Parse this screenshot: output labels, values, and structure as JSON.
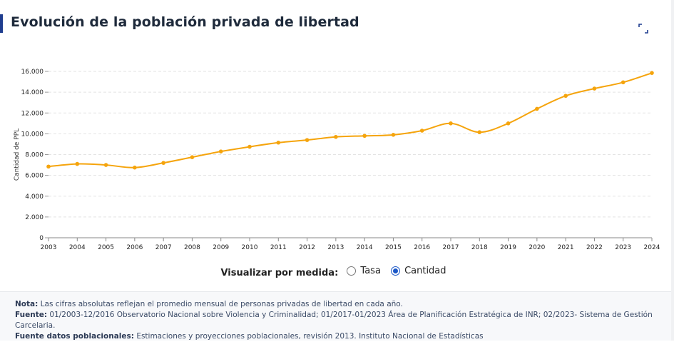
{
  "header": {
    "title": "Evolución de la población privada de libertad"
  },
  "chart_data": {
    "type": "line",
    "title": "Evolución de la población privada de libertad",
    "xlabel": "",
    "ylabel": "Cantidad de PPL",
    "ylim": [
      0,
      16000
    ],
    "yticks": [
      "0",
      "2.000",
      "4.000",
      "6.000",
      "8.000",
      "10.000",
      "12.000",
      "14.000",
      "16.000"
    ],
    "ytick_values": [
      0,
      2000,
      4000,
      6000,
      8000,
      10000,
      12000,
      14000,
      16000
    ],
    "categories": [
      "2003",
      "2004",
      "2005",
      "2006",
      "2007",
      "2008",
      "2009",
      "2010",
      "2011",
      "2012",
      "2013",
      "2014",
      "2015",
      "2016",
      "2017",
      "2018",
      "2019",
      "2020",
      "2021",
      "2022",
      "2023",
      "2024"
    ],
    "series": [
      {
        "name": "Cantidad",
        "color": "#f5a40c",
        "values": [
          6850,
          7100,
          7000,
          6750,
          7200,
          7750,
          8300,
          8750,
          9150,
          9400,
          9700,
          9800,
          9900,
          10300,
          11000,
          10150,
          11000,
          12400,
          13650,
          14350,
          14950,
          15850
        ]
      }
    ],
    "grid": true
  },
  "toggle": {
    "label": "Visualizar por medida:",
    "options": [
      {
        "label": "Tasa",
        "selected": false
      },
      {
        "label": "Cantidad",
        "selected": true
      }
    ]
  },
  "notes": {
    "nota_label": "Nota:",
    "nota_text": "Las cifras absolutas reflejan el promedio mensual de personas privadas de libertad en cada año.",
    "fuente_label": "Fuente:",
    "fuente_text": "01/2003-12/2016 Observatorio Nacional sobre Violencia y Criminalidad; 01/2017-01/2023 Área de Planificación Estratégica de INR; 02/2023- Sistema de Gestión Carcelaria.",
    "fuente_pob_label": "Fuente datos poblacionales:",
    "fuente_pob_text": "Estimaciones y proyecciones poblacionales, revisión 2013. Instituto Nacional de Estadísticas"
  }
}
